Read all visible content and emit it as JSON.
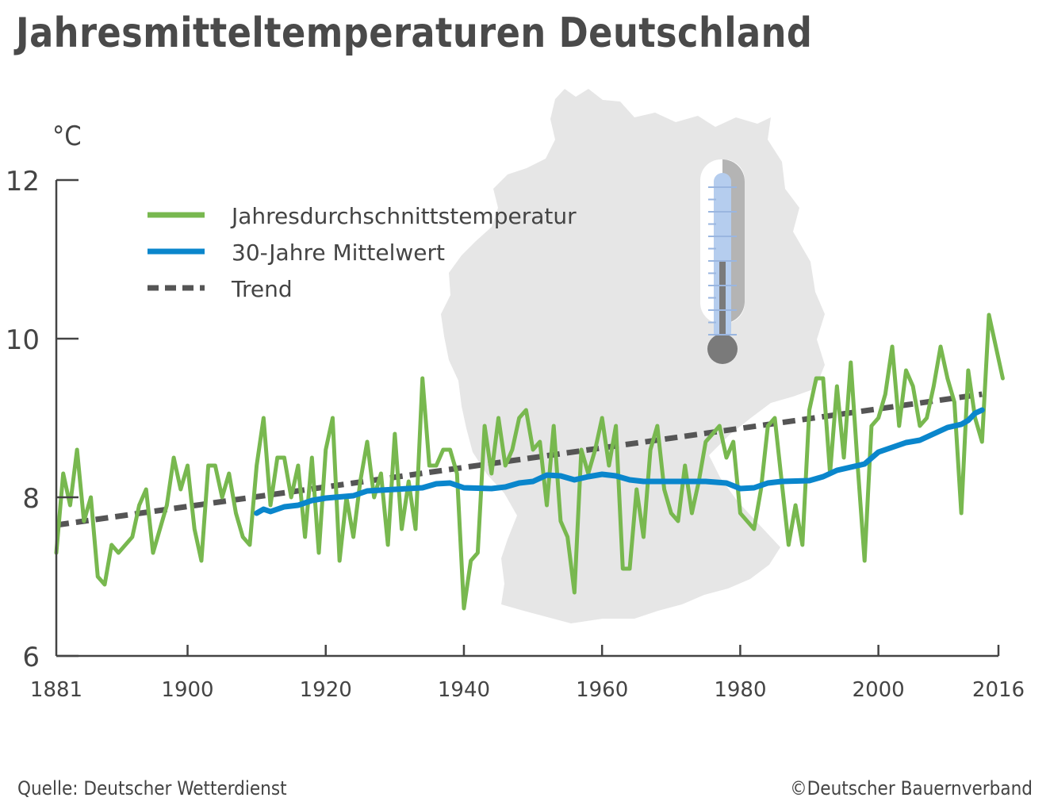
{
  "title": "Jahresmitteltemperaturen Deutschland",
  "unit": "°C",
  "source": "Quelle: Deutscher Wetterdienst",
  "copyright": "©Deutscher Bauernverband",
  "legend": [
    {
      "label": "Jahresdurchschnittstemperatur",
      "color": "#78b84f",
      "style": "solid"
    },
    {
      "label": "30-Jahre Mittelwert",
      "color": "#0a86cc",
      "style": "solid"
    },
    {
      "label": "Trend",
      "color": "#555555",
      "style": "dashed"
    }
  ],
  "chart_data": {
    "type": "line",
    "title": "Jahresmitteltemperaturen Deutschland",
    "xlabel": "",
    "ylabel": "°C",
    "xlim": [
      1881,
      2016
    ],
    "ylim": [
      6,
      12
    ],
    "x_ticks": [
      "1881",
      "1900",
      "1920",
      "1940",
      "1960",
      "1980",
      "2000",
      "2016"
    ],
    "y_ticks": [
      "6",
      "8",
      "10",
      "12"
    ],
    "legend_position": "top-left",
    "series": [
      {
        "name": "Jahresdurchschnittstemperatur",
        "color": "#78b84f",
        "x_start": 1881,
        "values": [
          7.3,
          8.3,
          7.9,
          8.6,
          7.7,
          8.0,
          7.0,
          6.9,
          7.4,
          7.3,
          7.4,
          7.5,
          7.9,
          8.1,
          7.3,
          7.6,
          7.9,
          8.5,
          8.1,
          8.4,
          7.6,
          7.2,
          8.4,
          8.4,
          8.0,
          8.3,
          7.8,
          7.5,
          7.4,
          8.4,
          9.0,
          7.9,
          8.5,
          8.5,
          8.0,
          8.4,
          7.5,
          8.5,
          7.3,
          8.6,
          9.0,
          7.2,
          8.0,
          7.5,
          8.2,
          8.7,
          8.0,
          8.3,
          7.4,
          8.8,
          7.6,
          8.2,
          7.6,
          9.5,
          8.4,
          8.4,
          8.6,
          8.6,
          8.3,
          6.6,
          7.2,
          7.3,
          8.9,
          8.3,
          9.0,
          8.4,
          8.6,
          9.0,
          9.1,
          8.6,
          8.7,
          7.9,
          8.9,
          7.7,
          7.5,
          6.8,
          8.6,
          8.3,
          8.6,
          9.0,
          8.4,
          8.9,
          7.1,
          7.1,
          8.1,
          7.5,
          8.6,
          8.9,
          8.1,
          7.8,
          7.7,
          8.4,
          7.8,
          8.2,
          8.7,
          8.8,
          8.9,
          8.5,
          8.7,
          7.8,
          7.7,
          7.6,
          8.1,
          8.9,
          9.0,
          8.2,
          7.4,
          7.9,
          7.4,
          9.1,
          9.5,
          9.5,
          8.3,
          9.4,
          8.5,
          9.7,
          8.4,
          7.2,
          8.9,
          9.0,
          9.3,
          9.9,
          8.9,
          9.6,
          9.4,
          8.9,
          9.0,
          9.4,
          9.9,
          9.5,
          9.2,
          7.8,
          9.6,
          9.0,
          8.7,
          10.3,
          9.9,
          9.5
        ]
      },
      {
        "name": "30-Jahre Mittelwert",
        "color": "#0a86cc",
        "points": [
          [
            1910,
            7.8
          ],
          [
            1911,
            7.85
          ],
          [
            1912,
            7.82
          ],
          [
            1914,
            7.88
          ],
          [
            1916,
            7.9
          ],
          [
            1918,
            7.96
          ],
          [
            1920,
            7.99
          ],
          [
            1924,
            8.02
          ],
          [
            1926,
            8.08
          ],
          [
            1930,
            8.1
          ],
          [
            1934,
            8.12
          ],
          [
            1936,
            8.17
          ],
          [
            1938,
            8.18
          ],
          [
            1940,
            8.12
          ],
          [
            1944,
            8.11
          ],
          [
            1946,
            8.13
          ],
          [
            1948,
            8.18
          ],
          [
            1950,
            8.2
          ],
          [
            1952,
            8.28
          ],
          [
            1954,
            8.27
          ],
          [
            1956,
            8.22
          ],
          [
            1958,
            8.26
          ],
          [
            1960,
            8.29
          ],
          [
            1962,
            8.27
          ],
          [
            1964,
            8.22
          ],
          [
            1966,
            8.2
          ],
          [
            1970,
            8.2
          ],
          [
            1975,
            8.2
          ],
          [
            1978,
            8.18
          ],
          [
            1980,
            8.11
          ],
          [
            1982,
            8.12
          ],
          [
            1984,
            8.18
          ],
          [
            1986,
            8.2
          ],
          [
            1990,
            8.21
          ],
          [
            1992,
            8.26
          ],
          [
            1994,
            8.34
          ],
          [
            1996,
            8.38
          ],
          [
            1998,
            8.42
          ],
          [
            2000,
            8.57
          ],
          [
            2002,
            8.63
          ],
          [
            2004,
            8.69
          ],
          [
            2006,
            8.72
          ],
          [
            2008,
            8.8
          ],
          [
            2010,
            8.88
          ],
          [
            2012,
            8.92
          ],
          [
            2013,
            8.97
          ],
          [
            2014,
            9.06
          ],
          [
            2015,
            9.1
          ]
        ]
      },
      {
        "name": "Trend",
        "color": "#555555",
        "dashed": true,
        "points": [
          [
            1881,
            7.65
          ],
          [
            2015,
            9.3
          ]
        ]
      }
    ]
  }
}
